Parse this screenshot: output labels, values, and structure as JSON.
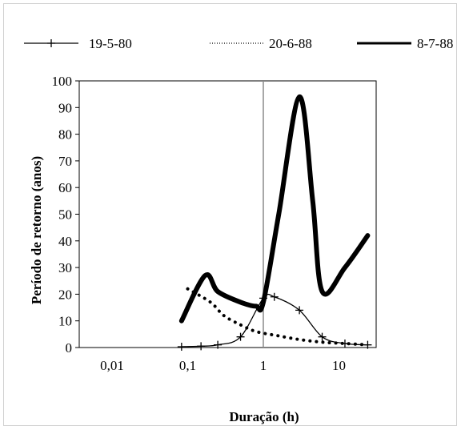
{
  "chart_data": {
    "type": "line",
    "xscale": "log",
    "xlabel": "Duração (h)",
    "ylabel": "Período de retorno (anos)",
    "xlim": [
      0.01,
      100
    ],
    "ylim": [
      0,
      100
    ],
    "xticks": [
      {
        "value": 0.01,
        "label": "0,01"
      },
      {
        "value": 0.1,
        "label": "0,1"
      },
      {
        "value": 1,
        "label": "1"
      },
      {
        "value": 10,
        "label": "10"
      }
    ],
    "yticks": [
      0,
      10,
      20,
      30,
      40,
      50,
      60,
      70,
      80,
      90,
      100
    ],
    "reference_line_x": 1,
    "legend_position": "top",
    "series": [
      {
        "name": "19-5-80",
        "style": "thin-line-plus-markers",
        "color": "#000000",
        "x": [
          0.083,
          0.15,
          0.25,
          0.5,
          1.0,
          1.4,
          3.0,
          6.0,
          12.0,
          24.0
        ],
        "y": [
          0.3,
          0.5,
          1.0,
          4.0,
          18.5,
          19.0,
          14.0,
          4.0,
          1.5,
          1.0
        ]
      },
      {
        "name": "20-6-88",
        "style": "dotted",
        "color": "#000000",
        "x": [
          0.1,
          0.2,
          0.3,
          0.5,
          0.8,
          1.5,
          3.0,
          6.0,
          12.0,
          24.0
        ],
        "y": [
          22.0,
          17.0,
          12.0,
          8.5,
          6.0,
          4.5,
          3.0,
          2.0,
          1.5,
          1.0
        ]
      },
      {
        "name": "8-7-88",
        "style": "thick-line",
        "color": "#000000",
        "x": [
          0.083,
          0.17,
          0.25,
          0.5,
          0.8,
          1.0,
          1.6,
          3.0,
          4.5,
          6.0,
          12.0,
          24.0
        ],
        "y": [
          10.0,
          27.0,
          21.0,
          17.0,
          15.5,
          17.0,
          50.0,
          94.0,
          55.0,
          21.0,
          30.0,
          42.0
        ]
      }
    ]
  }
}
